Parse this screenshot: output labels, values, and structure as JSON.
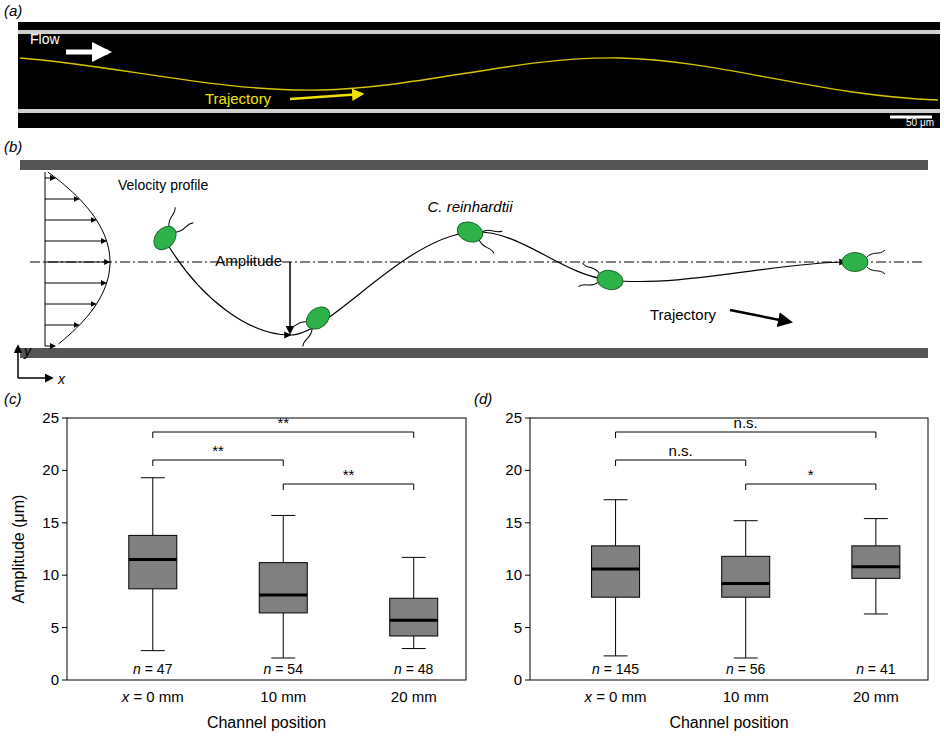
{
  "figure": {
    "panel_labels": [
      "(a)",
      "(b)",
      "(c)",
      "(d)"
    ]
  },
  "image_panel": {
    "flow": "Flow",
    "trajectory": "Trajectory",
    "scale_bar": "50 μm"
  },
  "schematic": {
    "velocity_profile": "Velocity profile",
    "amplitude": "Amplitude",
    "organism": "C. reinhardtii",
    "trajectory": "Trajectory",
    "y_axis": "y",
    "x_axis": "x"
  },
  "chart_data": [
    {
      "type": "box",
      "categories": [
        "x = 0 mm",
        "10 mm",
        "20 mm"
      ],
      "x_label": "Channel position",
      "y_label": "Amplitude (μm)",
      "ylim": [
        0,
        25
      ],
      "yticks": [
        0,
        5,
        10,
        15,
        20,
        25
      ],
      "low": [
        2.8,
        2.1,
        3.0
      ],
      "q1": [
        8.7,
        6.4,
        4.2
      ],
      "median": [
        11.5,
        8.1,
        5.7
      ],
      "q3": [
        13.8,
        11.2,
        7.8
      ],
      "high": [
        19.3,
        15.7,
        11.7
      ],
      "n_labels": [
        "n = 47",
        "n = 54",
        "n = 48"
      ],
      "comparisons": [
        {
          "pair": [
            0,
            1
          ],
          "label": "**"
        },
        {
          "pair": [
            1,
            2
          ],
          "label": "**"
        },
        {
          "pair": [
            0,
            2
          ],
          "label": "**"
        }
      ],
      "color": "#808080"
    },
    {
      "type": "box",
      "categories": [
        "x = 0 mm",
        "10 mm",
        "20 mm"
      ],
      "x_label": "Channel position",
      "ylim": [
        0,
        25
      ],
      "yticks": [
        0,
        5,
        10,
        15,
        20,
        25
      ],
      "low": [
        2.3,
        2.1,
        6.3
      ],
      "q1": [
        7.9,
        7.9,
        9.7
      ],
      "median": [
        10.6,
        9.2,
        10.8
      ],
      "q3": [
        12.8,
        11.8,
        12.8
      ],
      "high": [
        17.2,
        15.2,
        15.4
      ],
      "n_labels": [
        "n = 145",
        "n = 56",
        "n = 41"
      ],
      "comparisons": [
        {
          "pair": [
            0,
            1
          ],
          "label": "n.s."
        },
        {
          "pair": [
            1,
            2
          ],
          "label": "*"
        },
        {
          "pair": [
            0,
            2
          ],
          "label": "n.s."
        }
      ],
      "color": "#808080"
    }
  ]
}
